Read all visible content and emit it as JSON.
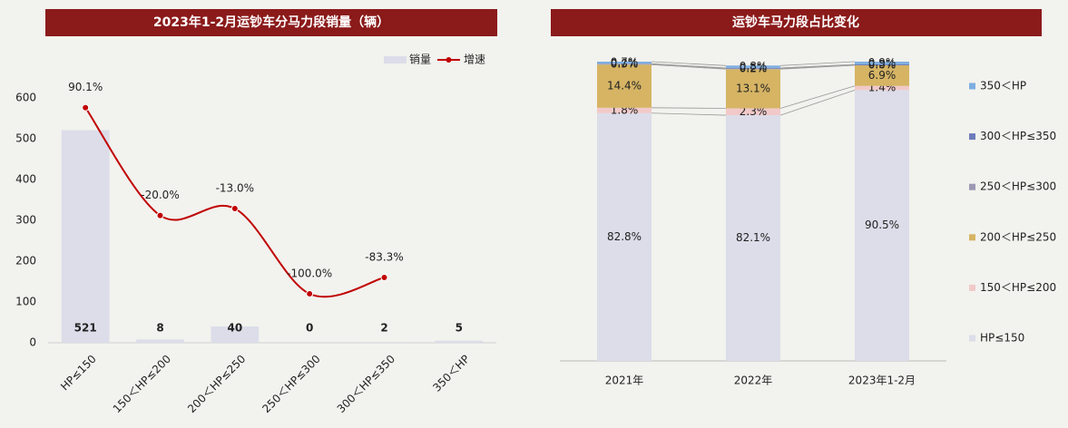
{
  "chart_data": [
    {
      "type": "bar",
      "title": "2023年1-2月运钞车分马力段销量（辆）",
      "categories": [
        "HP≤150",
        "150＜HP≤200",
        "200＜HP≤250",
        "250＜HP≤300",
        "300＜HP≤350",
        "350＜HP"
      ],
      "series": [
        {
          "name": "销量",
          "type": "bar",
          "color": "#dcdde9",
          "values": [
            521,
            8,
            40,
            0,
            2,
            5
          ]
        },
        {
          "name": "增速",
          "type": "line",
          "axis": "y2",
          "color": "#c00000",
          "values": [
            90.1,
            -20.0,
            -13.0,
            -100.0,
            -83.3,
            null
          ],
          "value_labels": [
            "90.1%",
            "-20.0%",
            "-13.0%",
            "-100.0%",
            "-83.3%",
            null
          ]
        }
      ],
      "ylim": [
        0,
        600
      ],
      "yticks": [
        0,
        100,
        200,
        300,
        400,
        500,
        600
      ],
      "y2lim": [
        -150,
        100
      ],
      "legend": "top-right"
    },
    {
      "type": "stacked_bar",
      "title": "运钞车马力段占比变化",
      "categories": [
        "2021年",
        "2022年",
        "2023年1-2月"
      ],
      "series": [
        {
          "name": "HP≤150",
          "color": "#dcdde9",
          "values": [
            82.8,
            82.1,
            90.5
          ],
          "value_labels": [
            "82.8%",
            "82.1%",
            "90.5%"
          ]
        },
        {
          "name": "150＜HP≤200",
          "color": "#f1c9c9",
          "values": [
            1.8,
            2.3,
            1.4
          ],
          "value_labels": [
            "1.8%",
            "2.3%",
            "1.4%"
          ]
        },
        {
          "name": "200＜HP≤250",
          "color": "#d6b464",
          "values": [
            14.4,
            13.1,
            6.9
          ],
          "value_labels": [
            "14.4%",
            "13.1%",
            "6.9%"
          ]
        },
        {
          "name": "250＜HP≤300",
          "color": "#9c98b2",
          "values": [
            0.3,
            0.2,
            0.0
          ],
          "value_labels": [
            "0.3%",
            "0.2%",
            "0.0%"
          ]
        },
        {
          "name": "300＜HP≤350",
          "color": "#6c7cba",
          "values": [
            0.0,
            0.2,
            0.3
          ],
          "value_labels": [
            "0.0%",
            "0.2%",
            "0.3%"
          ]
        },
        {
          "name": "350＜HP",
          "color": "#7eaee0",
          "values": [
            0.7,
            0.8,
            0.9
          ],
          "value_labels": [
            "0.7%",
            "0.8%",
            "0.9%"
          ]
        }
      ],
      "ylim": [
        0,
        100
      ],
      "legend": "right"
    }
  ]
}
